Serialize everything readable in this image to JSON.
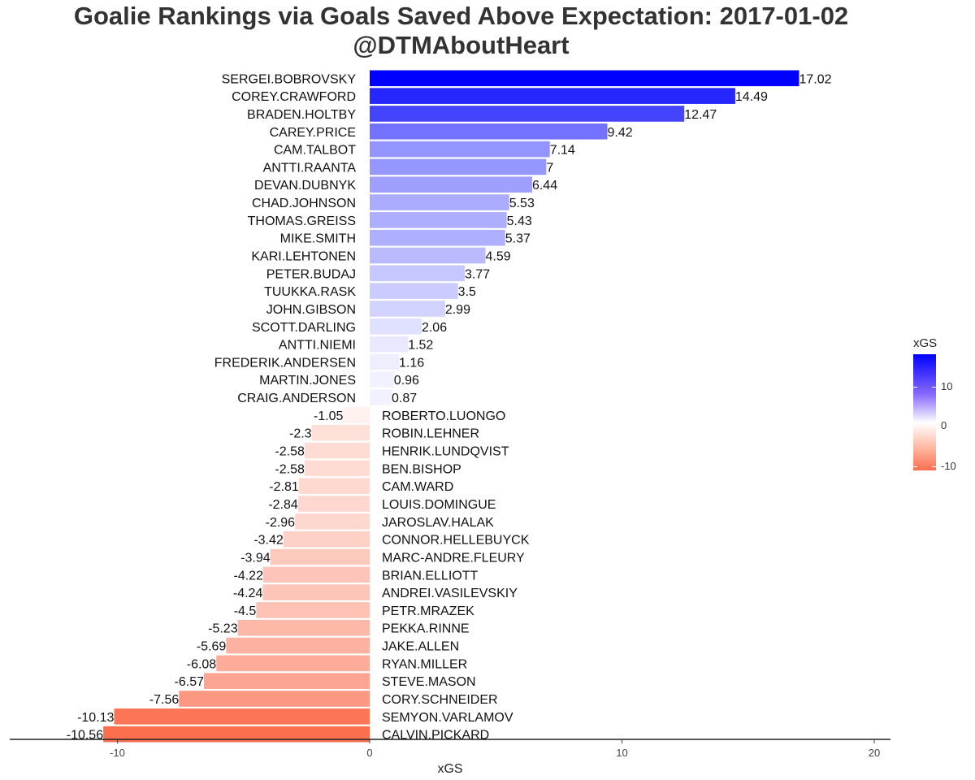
{
  "title": "Goalie Rankings via Goals Saved Above Expectation: 2017-01-02",
  "subtitle": "@DTMAboutHeart",
  "legend": {
    "title": "xGS",
    "ticks": [
      "10",
      "0",
      "-10"
    ]
  },
  "colors": {
    "high": "#0000ff",
    "mid": "#ffffff",
    "low": "#fb6f4f"
  },
  "chart_data": {
    "type": "bar",
    "orientation": "horizontal",
    "xlabel": "xGS",
    "ylabel": "",
    "xlim": [
      -14,
      20.7
    ],
    "xticks": [
      -10,
      0,
      10,
      20
    ],
    "grid": false,
    "legend_position": "right",
    "color_scale": {
      "low": -10.56,
      "mid": 0,
      "high": 17.02
    },
    "categories": [
      "SERGEI.BOBROVSKY",
      "COREY.CRAWFORD",
      "BRADEN.HOLTBY",
      "CAREY.PRICE",
      "CAM.TALBOT",
      "ANTTI.RAANTA",
      "DEVAN.DUBNYK",
      "CHAD.JOHNSON",
      "THOMAS.GREISS",
      "MIKE.SMITH",
      "KARI.LEHTONEN",
      "PETER.BUDAJ",
      "TUUKKA.RASK",
      "JOHN.GIBSON",
      "SCOTT.DARLING",
      "ANTTI.NIEMI",
      "FREDERIK.ANDERSEN",
      "MARTIN.JONES",
      "CRAIG.ANDERSON",
      "ROBERTO.LUONGO",
      "ROBIN.LEHNER",
      "HENRIK.LUNDQVIST",
      "BEN.BISHOP",
      "CAM.WARD",
      "LOUIS.DOMINGUE",
      "JAROSLAV.HALAK",
      "CONNOR.HELLEBUYCK",
      "MARC-ANDRE.FLEURY",
      "BRIAN.ELLIOTT",
      "ANDREI.VASILEVSKIY",
      "PETR.MRAZEK",
      "PEKKA.RINNE",
      "JAKE.ALLEN",
      "RYAN.MILLER",
      "STEVE.MASON",
      "CORY.SCHNEIDER",
      "SEMYON.VARLAMOV",
      "CALVIN.PICKARD"
    ],
    "values": [
      17.02,
      14.49,
      12.47,
      9.42,
      7.14,
      7,
      6.44,
      5.53,
      5.43,
      5.37,
      4.59,
      3.77,
      3.5,
      2.99,
      2.06,
      1.52,
      1.16,
      0.96,
      0.87,
      -1.05,
      -2.3,
      -2.58,
      -2.58,
      -2.81,
      -2.84,
      -2.96,
      -3.42,
      -3.94,
      -4.22,
      -4.24,
      -4.5,
      -5.23,
      -5.69,
      -6.08,
      -6.57,
      -7.56,
      -10.13,
      -10.56
    ],
    "value_labels": [
      "17.02",
      "14.49",
      "12.47",
      "9.42",
      "7.14",
      "7",
      "6.44",
      "5.53",
      "5.43",
      "5.37",
      "4.59",
      "3.77",
      "3.5",
      "2.99",
      "2.06",
      "1.52",
      "1.16",
      "0.96",
      "0.87",
      "-1.05",
      "-2.3",
      "-2.58",
      "-2.58",
      "-2.81",
      "-2.84",
      "-2.96",
      "-3.42",
      "-3.94",
      "-4.22",
      "-4.24",
      "-4.5",
      "-5.23",
      "-5.69",
      "-6.08",
      "-6.57",
      "-7.56",
      "-10.13",
      "-10.56"
    ]
  }
}
